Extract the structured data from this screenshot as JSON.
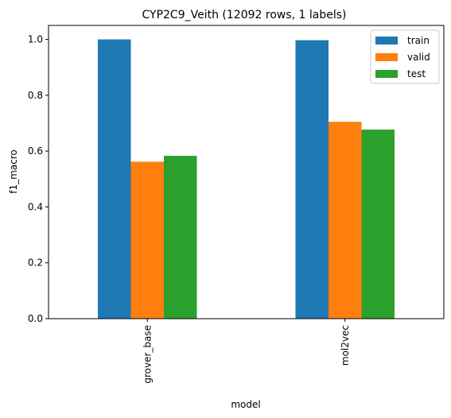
{
  "chart_data": {
    "type": "bar",
    "title": "CYP2C9_Veith (12092 rows, 1 labels)",
    "xlabel": "model",
    "ylabel": "f1_macro",
    "categories": [
      "grover_base",
      "mol2vec"
    ],
    "series": [
      {
        "name": "train",
        "color": "#1f77b4",
        "values": [
          1.0,
          0.997
        ]
      },
      {
        "name": "valid",
        "color": "#ff7f0e",
        "values": [
          0.562,
          0.705
        ]
      },
      {
        "name": "test",
        "color": "#2ca02c",
        "values": [
          0.583,
          0.677
        ]
      }
    ],
    "ylim": [
      0,
      1.05
    ],
    "yticks": [
      0.0,
      0.2,
      0.4,
      0.6,
      0.8,
      1.0
    ],
    "ytick_labels": [
      "0.0",
      "0.2",
      "0.4",
      "0.6",
      "0.8",
      "1.0"
    ],
    "legend": "top-right",
    "grid": false
  }
}
